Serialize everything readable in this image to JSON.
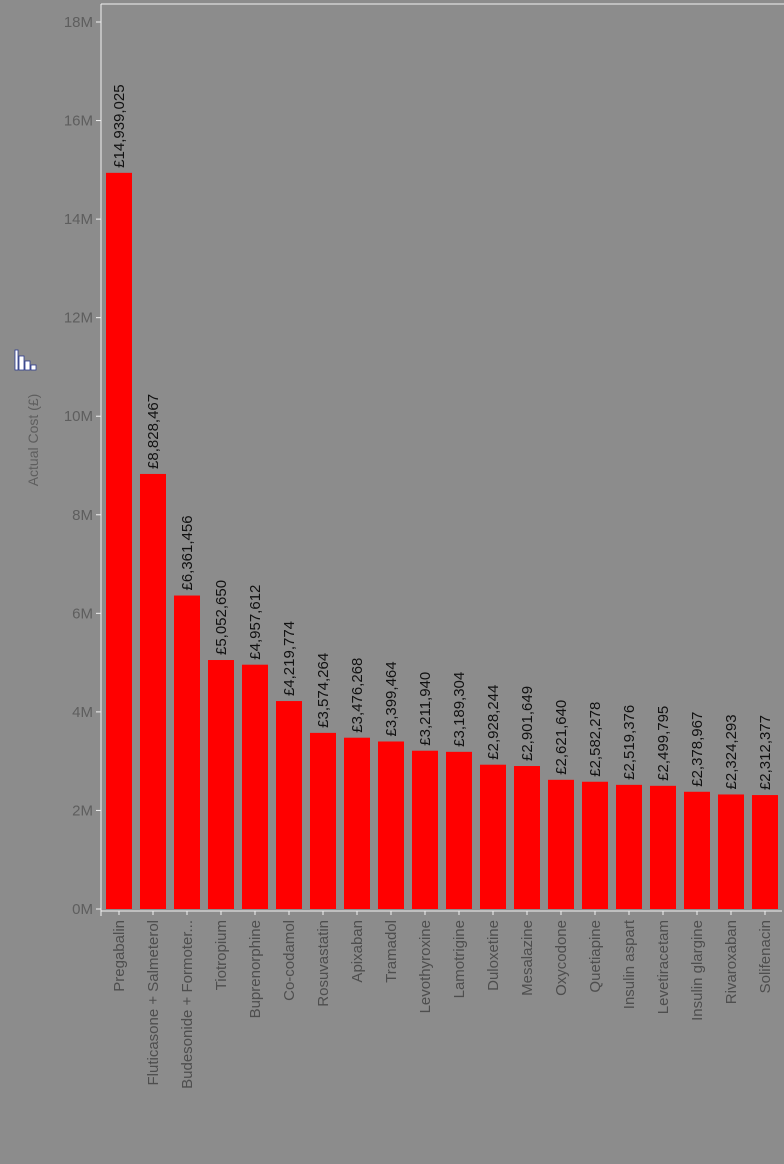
{
  "colors": {
    "background": "#8c8c8c",
    "bar": "#ff0000",
    "axis": "#f2f2f2",
    "value_label": "#111111",
    "tick_label": "#5e5e5e"
  },
  "icons": {
    "chart_toggle": "bar-chart-icon"
  },
  "chart_data": {
    "type": "bar",
    "orientation": "vertical",
    "ylabel": "Actual Cost (£)",
    "xlabel": "",
    "ylim": [
      0,
      18000000
    ],
    "y_ticks": [
      0,
      2000000,
      4000000,
      6000000,
      8000000,
      10000000,
      12000000,
      14000000,
      16000000,
      18000000
    ],
    "y_tick_labels": [
      "0M",
      "2M",
      "4M",
      "6M",
      "8M",
      "10M",
      "12M",
      "14M",
      "16M",
      "18M"
    ],
    "grid": false,
    "categories": [
      "Pregabalin",
      "Fluticasone + Salmeterol",
      "Budesonide + Formoter...",
      "Tiotropium",
      "Buprenorphine",
      "Co-codamol",
      "Rosuvastatin",
      "Apixaban",
      "Tramadol",
      "Levothyroxine",
      "Lamotrigine",
      "Duloxetine",
      "Mesalazine",
      "Oxycodone",
      "Quetiapine",
      "Insulin aspart",
      "Levetiracetam",
      "Insulin glargine",
      "Rivaroxaban",
      "Solifenacin"
    ],
    "values": [
      14939025,
      8828467,
      6361456,
      5052650,
      4957612,
      4219774,
      3574264,
      3476268,
      3399464,
      3211940,
      3189304,
      2928244,
      2901649,
      2621640,
      2582278,
      2519376,
      2499795,
      2378967,
      2324293,
      2312377
    ],
    "value_labels": [
      "£14,939,025",
      "£8,828,467",
      "£6,361,456",
      "£5,052,650",
      "£4,957,612",
      "£4,219,774",
      "£3,574,264",
      "£3,476,268",
      "£3,399,464",
      "£3,211,940",
      "£3,189,304",
      "£2,928,244",
      "£2,901,649",
      "£2,621,640",
      "£2,582,278",
      "£2,519,376",
      "£2,499,795",
      "£2,378,967",
      "£2,324,293",
      "£2,312,377"
    ]
  }
}
